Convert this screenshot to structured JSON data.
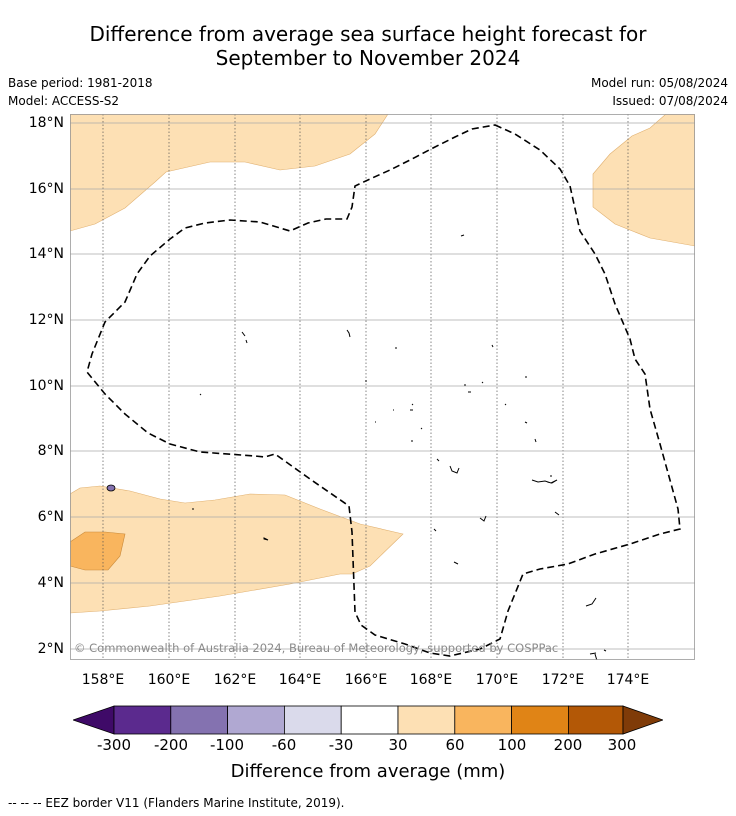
{
  "title": {
    "line1": "Difference from average sea surface height forecast for",
    "line2": "September to November 2024"
  },
  "meta": {
    "base_period": "Base period: 1981-2018",
    "model": "Model: ACCESS-S2",
    "model_run": "Model run: 05/08/2024",
    "issued": "Issued: 07/08/2024"
  },
  "map": {
    "lat_labels": [
      "18°N",
      "16°N",
      "14°N",
      "12°N",
      "10°N",
      "8°N",
      "6°N",
      "4°N",
      "2°N"
    ],
    "lon_labels": [
      "158°E",
      "160°E",
      "162°E",
      "164°E",
      "166°E",
      "168°E",
      "170°E",
      "172°E",
      "174°E"
    ],
    "copyright": "© Commonwealth of Australia 2024, Bureau of Meteorology, supported by COSPPac"
  },
  "colorbar": {
    "ticks": [
      "-300",
      "-200",
      "-100",
      "-60",
      "-30",
      "30",
      "60",
      "100",
      "200",
      "300"
    ],
    "colors": [
      "#3f0a68",
      "#5b2a8e",
      "#8472b0",
      "#b0a8d2",
      "#dadaeb",
      "#ffffff",
      "#fde0b4",
      "#f9b55e",
      "#e08416",
      "#b35806",
      "#7f3b08"
    ],
    "title": "Difference from average (mm)"
  },
  "legend": {
    "eez_note": "--  --  -- EEZ border V11 (Flanders Marine Institute, 2019)."
  }
}
